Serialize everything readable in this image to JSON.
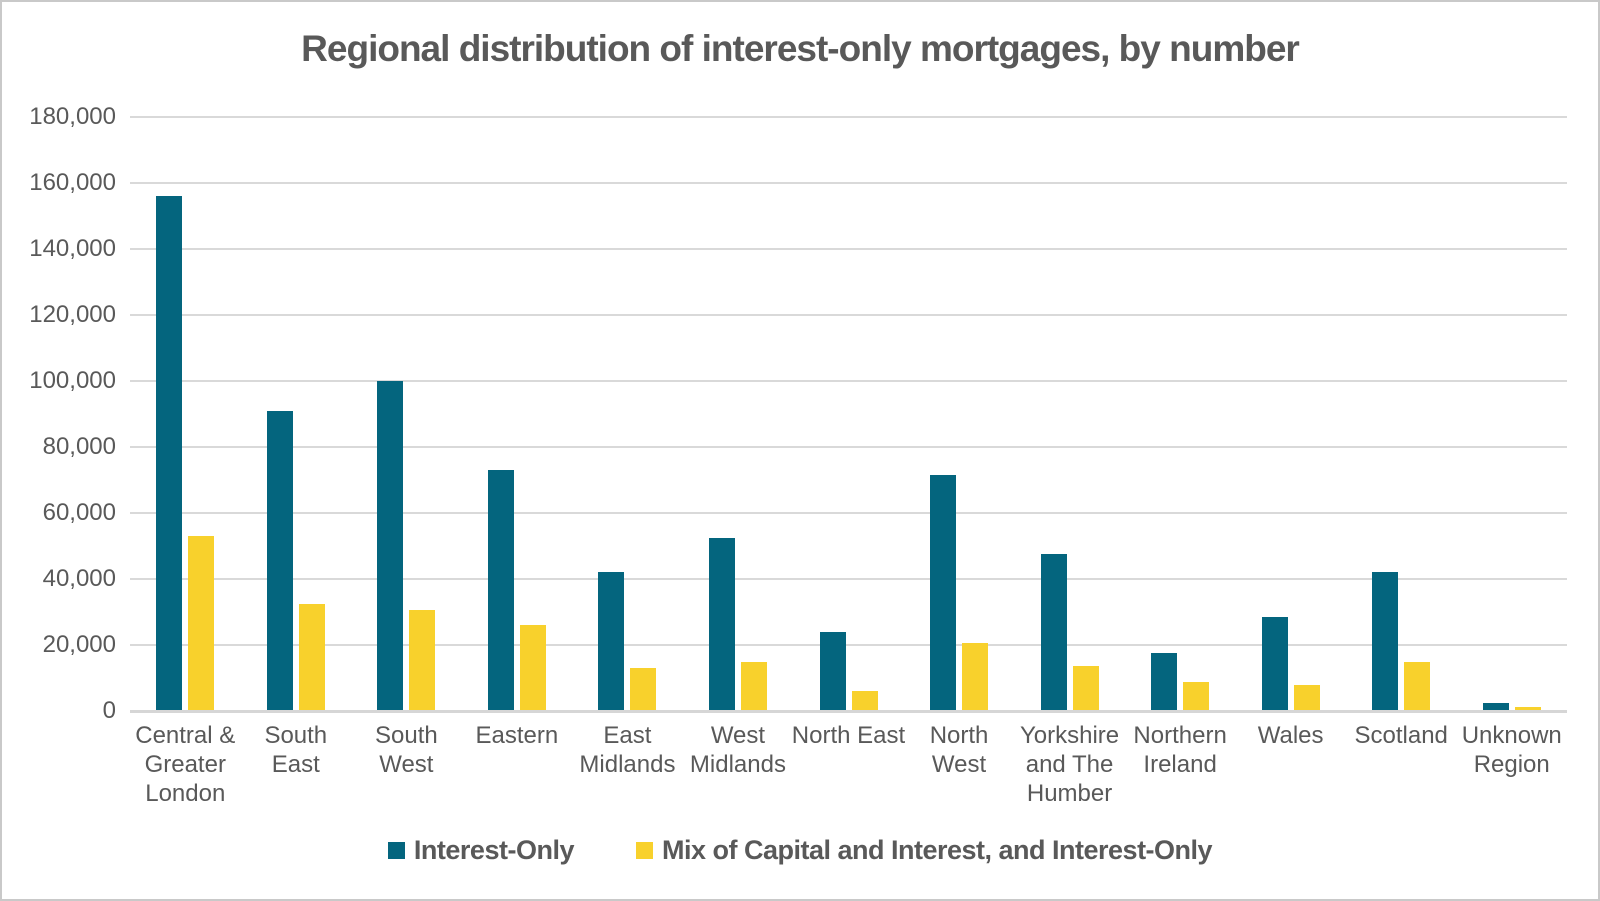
{
  "page": {
    "background_color": "#FFFFFF",
    "border_color": "#C9C9C9",
    "text_color": "#595959",
    "gridline_color": "#D9D9D9"
  },
  "chart_data": {
    "type": "bar",
    "title": "Regional distribution of interest-only mortgages, by number",
    "categories": [
      "Central & Greater London",
      "South East",
      "South West",
      "Eastern",
      "East Midlands",
      "West Midlands",
      "North East",
      "North West",
      "Yorkshire and The Humber",
      "Northern Ireland",
      "Wales",
      "Scotland",
      "Unknown Region"
    ],
    "series": [
      {
        "name": "Interest-Only",
        "color": "#04657E",
        "values": [
          156000,
          91000,
          100000,
          73000,
          42000,
          52500,
          24000,
          71500,
          47500,
          17500,
          28500,
          42000,
          2500
        ]
      },
      {
        "name": "Mix of Capital and Interest, and Interest-Only",
        "color": "#F8D12C",
        "values": [
          53000,
          32500,
          30500,
          26000,
          13000,
          15000,
          6000,
          20500,
          13500,
          8700,
          7800,
          15000,
          1200
        ]
      }
    ],
    "xlabel": "",
    "ylabel": "",
    "ylim": [
      0,
      180000
    ],
    "ytick_step": 20000,
    "ytick_labels": [
      "0",
      "20,000",
      "40,000",
      "60,000",
      "80,000",
      "100,000",
      "120,000",
      "140,000",
      "160,000",
      "180,000"
    ],
    "grid": "horizontal-only",
    "legend_position": "bottom"
  }
}
